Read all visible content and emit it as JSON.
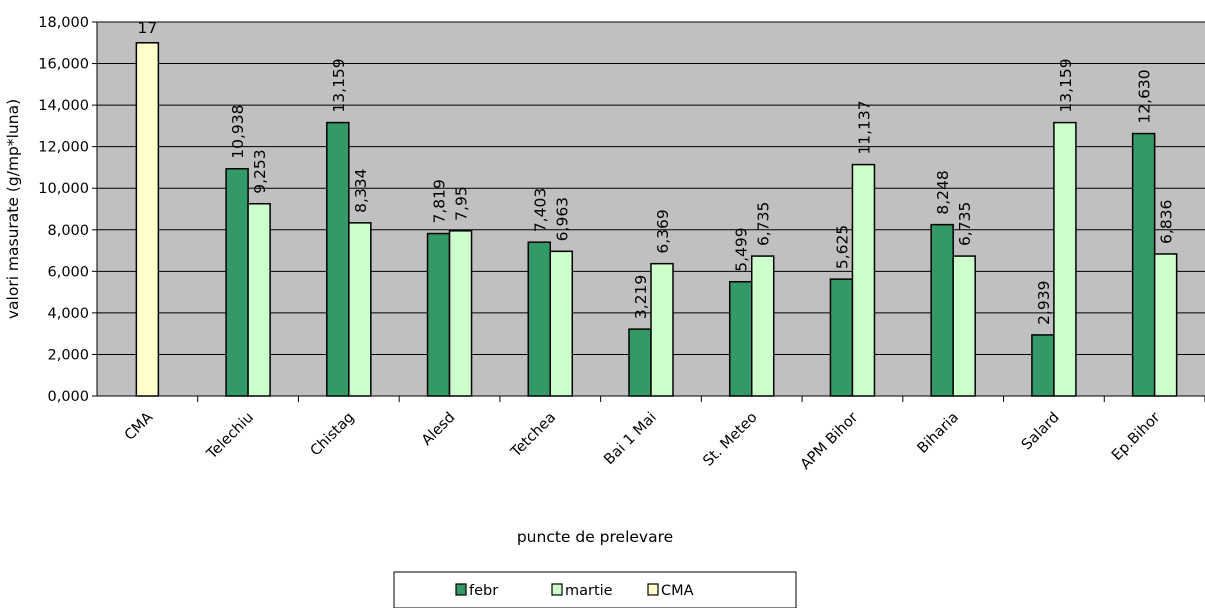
{
  "chart_data": {
    "type": "bar",
    "categories": [
      "CMA",
      "Telechiu",
      "Chistag",
      "Alesd",
      "Tetchea",
      "Bai 1 Mai",
      "St. Meteo",
      "APM Bihor",
      "Biharia",
      "Salard",
      "Ep.Bihor"
    ],
    "series": [
      {
        "name": "febr",
        "color": "#339966",
        "values": [
          null,
          10.938,
          13.159,
          7.819,
          7.403,
          3.219,
          5.499,
          5.625,
          8.248,
          2.939,
          12.63
        ],
        "labels": [
          null,
          "10,938",
          "13,159",
          "7,819",
          "7,403",
          "3,219",
          "5,499",
          "5,625",
          "8,248",
          "2,939",
          "12,630"
        ]
      },
      {
        "name": "martie",
        "color": "#CCFFCC",
        "values": [
          null,
          9.253,
          8.334,
          7.95,
          6.963,
          6.369,
          6.735,
          11.137,
          6.735,
          13.159,
          6.836
        ],
        "labels": [
          null,
          "9,253",
          "8,334",
          "7,95",
          "6,963",
          "6,369",
          "6,735",
          "11,137",
          "6,735",
          "13,159",
          "6,836"
        ]
      },
      {
        "name": "CMA",
        "color": "#FFFFCC",
        "values": [
          17,
          null,
          null,
          null,
          null,
          null,
          null,
          null,
          null,
          null,
          null
        ],
        "labels": [
          "17",
          null,
          null,
          null,
          null,
          null,
          null,
          null,
          null,
          null,
          null
        ]
      }
    ],
    "xlabel": "puncte de prelevare",
    "ylabel": "valori masurate (g/mp*luna)",
    "ylim": [
      0,
      18
    ],
    "yticks": [
      "0,000",
      "2,000",
      "4,000",
      "6,000",
      "8,000",
      "10,000",
      "12,000",
      "14,000",
      "16,000",
      "18,000"
    ],
    "grid": true,
    "legend": "bottom-center",
    "plot_background": "#C0C0C0"
  }
}
